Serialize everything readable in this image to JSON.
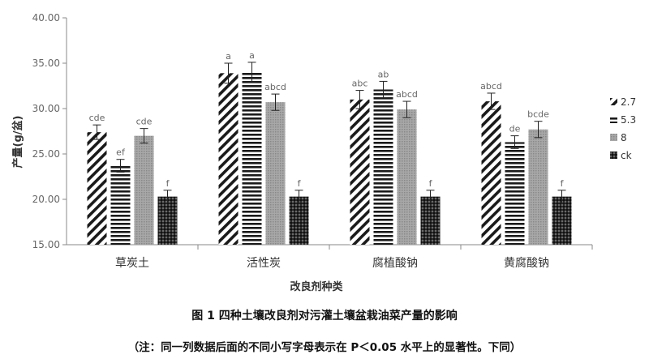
{
  "chart_data": {
    "type": "bar",
    "ylabel": "产量(g/盆)",
    "xlabel": "改良剂种类",
    "ylim": [
      15,
      40
    ],
    "yticks": [
      "15.00",
      "20.00",
      "25.00",
      "30.00",
      "35.00",
      "40.00"
    ],
    "categories": [
      "草炭土",
      "活性炭",
      "腐植酸钠",
      "黄腐酸钠"
    ],
    "legend_position": "right",
    "grid": false,
    "series": [
      {
        "name": "2.7",
        "pattern": "diagonal",
        "values": [
          27.4,
          33.9,
          31.0,
          30.8
        ],
        "errors": [
          0.8,
          1.1,
          1.0,
          0.9
        ],
        "letters": [
          "cde",
          "a",
          "abc",
          "abcd"
        ]
      },
      {
        "name": "5.3",
        "pattern": "horizontal",
        "values": [
          23.7,
          34.0,
          32.1,
          26.3
        ],
        "errors": [
          0.7,
          1.1,
          0.9,
          0.7
        ],
        "letters": [
          "ef",
          "a",
          "ab",
          "de"
        ]
      },
      {
        "name": "8",
        "pattern": "grey",
        "values": [
          27.0,
          30.7,
          29.9,
          27.7
        ],
        "errors": [
          0.8,
          0.9,
          0.9,
          0.9
        ],
        "letters": [
          "cde",
          "abcd",
          "abcd",
          "bcde"
        ]
      },
      {
        "name": "ck",
        "pattern": "dots",
        "values": [
          20.3,
          20.3,
          20.3,
          20.3
        ],
        "errors": [
          0.7,
          0.7,
          0.7,
          0.7
        ],
        "letters": [
          "f",
          "f",
          "f",
          "f"
        ]
      }
    ]
  },
  "caption": "图 1 四种土壤改良剂对污灌土壤盆栽油菜产量的影响",
  "note": "（注：同一列数据后面的不同小写字母表示在 P＜0.05 水平上的显著性。下同）",
  "colors": {
    "bar_dark": "#1a1a1a",
    "bar_grey": "#9a9a9a",
    "axis": "#888888"
  }
}
